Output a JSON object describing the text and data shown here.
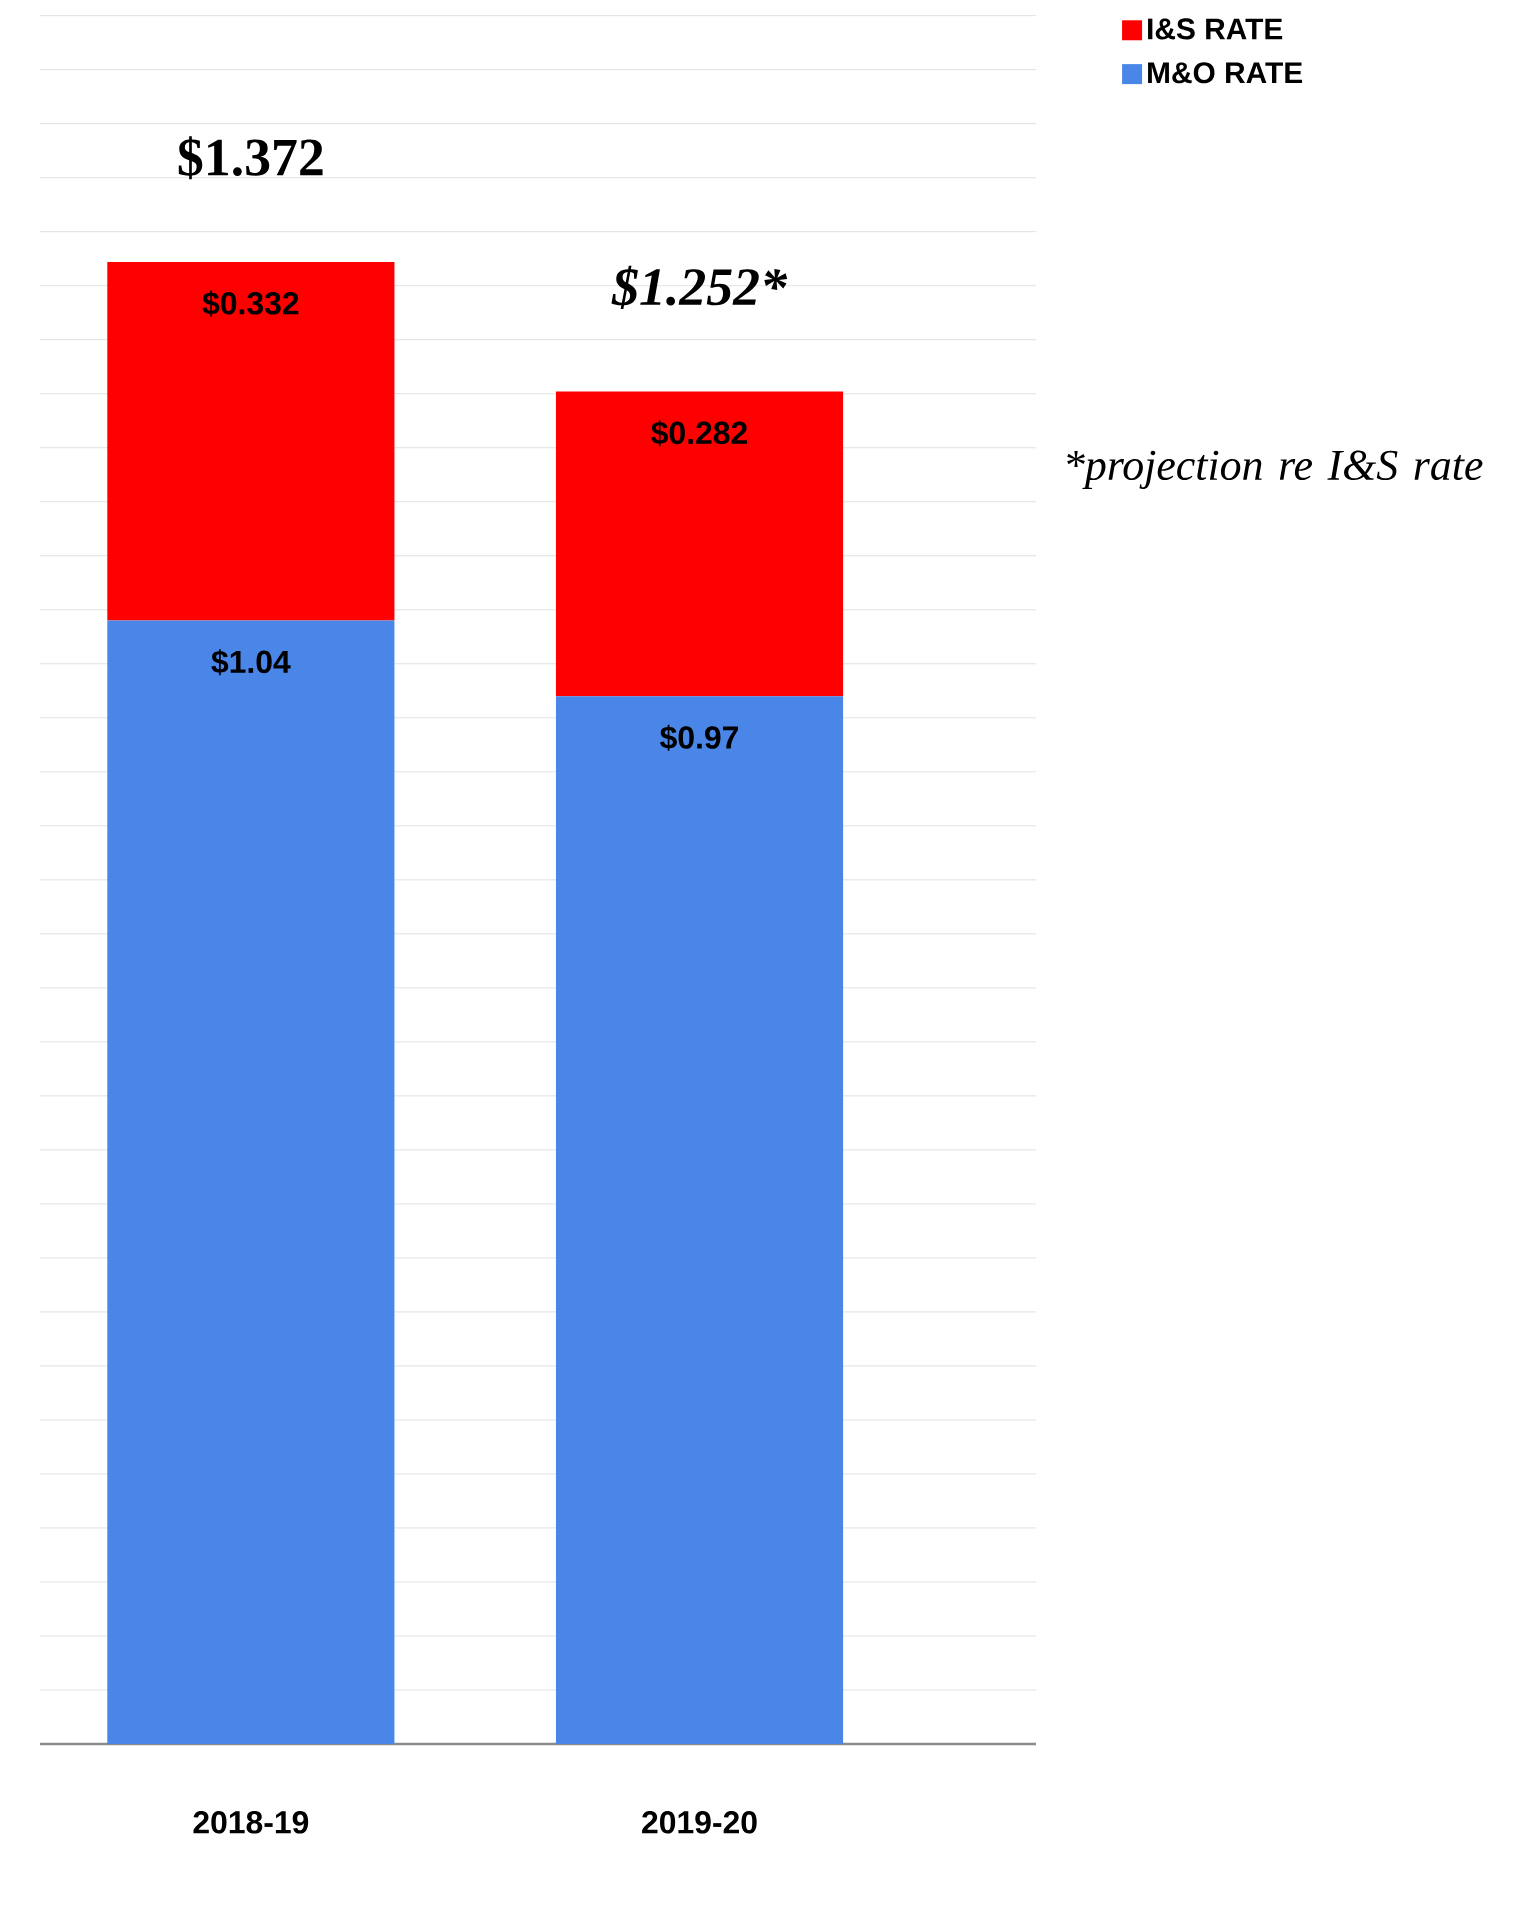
{
  "chart_data": {
    "type": "bar",
    "stacked": true,
    "categories": [
      "2018-19",
      "2019-20"
    ],
    "series": [
      {
        "name": "M&O RATE",
        "color": "#4a86e8",
        "values": [
          1.04,
          0.97
        ],
        "value_labels": [
          "$1.04",
          "$0.97"
        ]
      },
      {
        "name": "I&S RATE",
        "color": "#ff0000",
        "values": [
          0.332,
          0.282
        ],
        "value_labels": [
          "$0.332",
          "$0.282"
        ]
      }
    ],
    "totals": [
      "$1.372",
      "$1.252*"
    ],
    "annotations": [
      "*projection re I&S rate"
    ],
    "tick_labels": "x",
    "grid": "y",
    "legend": "top right"
  }
}
